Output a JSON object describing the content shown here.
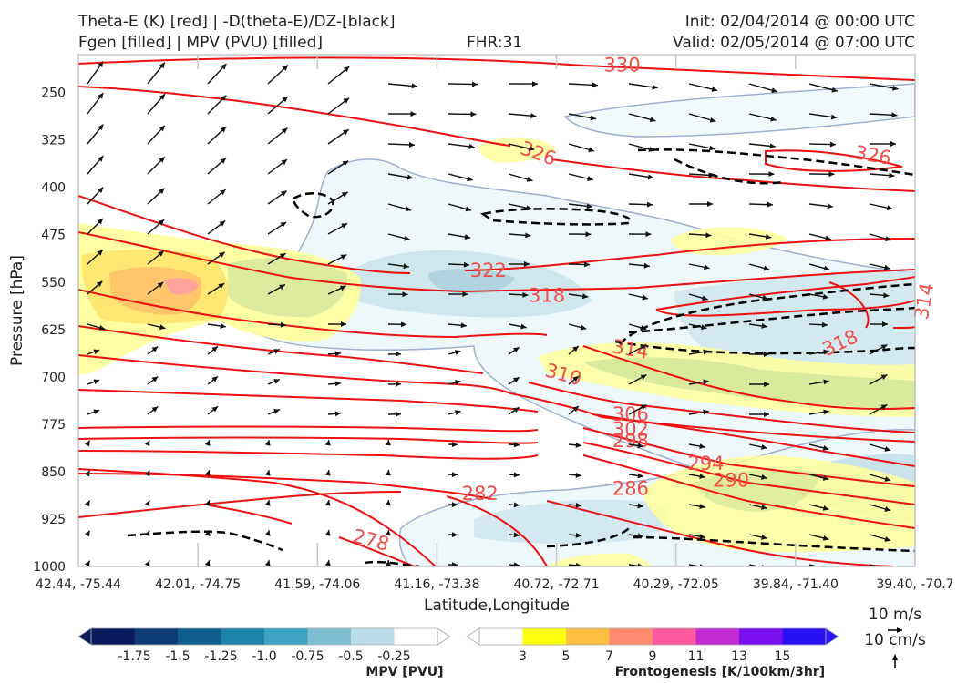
{
  "chart_data": {
    "type": "cross-section",
    "title_left_line1": "Theta-E (K) [red] | -D(theta-E)/DZ-[black]",
    "title_left_line2": "Fgen [filled] | MPV (PVU) [filled]",
    "fhr": "FHR:31",
    "init": "Init: 02/04/2014 @ 00:00 UTC",
    "valid": "Valid: 02/05/2014 @ 07:00 UTC",
    "ylabel": "Pressure [hPa]",
    "xlabel": "Latitude,Longitude",
    "y_ticks": [
      "250",
      "325",
      "400",
      "475",
      "550",
      "625",
      "700",
      "775",
      "850",
      "925",
      "1000"
    ],
    "x_ticks": [
      "42.44, -75.44",
      "42.01, -74.75",
      "41.59, -74.06",
      "41.16, -73.38",
      "40.72, -72.71",
      "40.29, -72.05",
      "39.84, -71.40",
      "39.40, -70.7"
    ],
    "ylim": [
      190,
      1000
    ],
    "theta_e_labels": [
      {
        "value": "330",
        "col": 6.5,
        "p": 205
      },
      {
        "value": "326",
        "col": 5.5,
        "p": 345,
        "rot": 20
      },
      {
        "value": "326",
        "col": 9.5,
        "p": 348,
        "rot": 10
      },
      {
        "value": "322",
        "col": 4.9,
        "p": 530
      },
      {
        "value": "318",
        "col": 5.6,
        "p": 570
      },
      {
        "value": "318",
        "col": 9.1,
        "p": 645,
        "rot": -25
      },
      {
        "value": "314",
        "col": 10.1,
        "p": 580,
        "rot": -80
      },
      {
        "value": "314",
        "col": 6.6,
        "p": 655,
        "rot": 10
      },
      {
        "value": "310",
        "col": 5.8,
        "p": 695,
        "rot": 15
      },
      {
        "value": "306",
        "col": 6.6,
        "p": 758
      },
      {
        "value": "302",
        "col": 6.6,
        "p": 782
      },
      {
        "value": "298",
        "col": 6.6,
        "p": 800
      },
      {
        "value": "294",
        "col": 7.5,
        "p": 836
      },
      {
        "value": "290",
        "col": 7.8,
        "p": 862
      },
      {
        "value": "286",
        "col": 6.6,
        "p": 875
      },
      {
        "value": "282",
        "col": 4.8,
        "p": 883
      },
      {
        "value": "278",
        "col": 3.5,
        "p": 957,
        "rot": 15
      }
    ],
    "mpv_colorbar": {
      "title": "MPV [PVU]",
      "labels": [
        "-1.75",
        "-1.5",
        "-1.25",
        "-1.0",
        "-0.75",
        "-0.5",
        "-0.25"
      ],
      "colors": [
        "#0a1a5c",
        "#0d3c78",
        "#0f5e8f",
        "#1d83a8",
        "#3ea2c2",
        "#7fbed3",
        "#b9dce6",
        "#ffffff"
      ]
    },
    "fgen_colorbar": {
      "title": "Frontogenesis [K/100km/3hr]",
      "labels": [
        "3",
        "5",
        "7",
        "9",
        "11",
        "13",
        "15"
      ],
      "colors": [
        "#ffffff",
        "#ffff10",
        "#ffbf40",
        "#ff8a70",
        "#ff5aa0",
        "#c22ad2",
        "#7a10f0",
        "#2a10f5"
      ]
    },
    "vector_key": {
      "horizontal": "10 m/s",
      "vertical": "10 cm/s"
    }
  }
}
